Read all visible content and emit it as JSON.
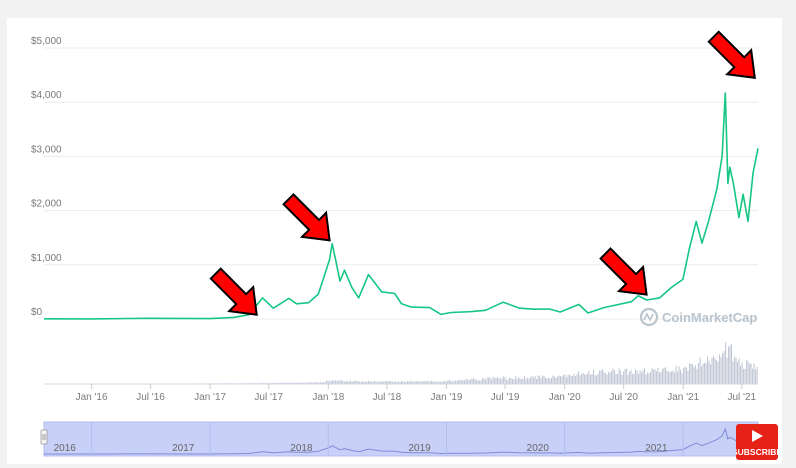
{
  "chart_data": {
    "type": "line",
    "title": "",
    "xlabel": "",
    "ylabel": "",
    "ylim": [
      0,
      5000
    ],
    "grid": true,
    "y_ticks": [
      "$5,000",
      "$4,000",
      "$3,000",
      "$2,000",
      "$1,000",
      "$0"
    ],
    "y_tick_values": [
      5000,
      4000,
      3000,
      2000,
      1000,
      0
    ],
    "x_ticks": [
      "Jan '16",
      "Jul '16",
      "Jan '17",
      "Jul '17",
      "Jan '18",
      "Jul '18",
      "Jan '19",
      "Jul '19",
      "Jan '20",
      "Jul '20",
      "Jan '21",
      "Jul '21"
    ],
    "x_range": [
      "2015-08-07",
      "2021-08-20"
    ],
    "series": [
      {
        "color": "#16c784",
        "points": [
          [
            "2015-08-07",
            3
          ],
          [
            "2016-01-01",
            1
          ],
          [
            "2016-06-15",
            13
          ],
          [
            "2016-12-31",
            8
          ],
          [
            "2017-03-15",
            30
          ],
          [
            "2017-05-01",
            80
          ],
          [
            "2017-06-12",
            390
          ],
          [
            "2017-07-15",
            200
          ],
          [
            "2017-09-01",
            380
          ],
          [
            "2017-09-25",
            280
          ],
          [
            "2017-11-01",
            300
          ],
          [
            "2017-12-01",
            460
          ],
          [
            "2017-12-20",
            800
          ],
          [
            "2018-01-05",
            1100
          ],
          [
            "2018-01-13",
            1390
          ],
          [
            "2018-01-25",
            1050
          ],
          [
            "2018-02-06",
            700
          ],
          [
            "2018-02-20",
            900
          ],
          [
            "2018-03-15",
            580
          ],
          [
            "2018-04-05",
            390
          ],
          [
            "2018-05-05",
            820
          ],
          [
            "2018-06-15",
            500
          ],
          [
            "2018-07-25",
            470
          ],
          [
            "2018-08-15",
            280
          ],
          [
            "2018-09-15",
            220
          ],
          [
            "2018-11-10",
            210
          ],
          [
            "2018-12-15",
            85
          ],
          [
            "2019-01-15",
            120
          ],
          [
            "2019-03-15",
            135
          ],
          [
            "2019-05-01",
            160
          ],
          [
            "2019-06-25",
            310
          ],
          [
            "2019-08-15",
            200
          ],
          [
            "2019-10-01",
            180
          ],
          [
            "2019-11-15",
            185
          ],
          [
            "2019-12-18",
            130
          ],
          [
            "2020-02-14",
            270
          ],
          [
            "2020-03-13",
            110
          ],
          [
            "2020-05-01",
            210
          ],
          [
            "2020-07-25",
            320
          ],
          [
            "2020-08-15",
            430
          ],
          [
            "2020-09-10",
            350
          ],
          [
            "2020-10-20",
            390
          ],
          [
            "2020-11-25",
            580
          ],
          [
            "2020-12-31",
            730
          ],
          [
            "2021-01-20",
            1300
          ],
          [
            "2021-02-10",
            1800
          ],
          [
            "2021-02-28",
            1400
          ],
          [
            "2021-03-20",
            1800
          ],
          [
            "2021-04-15",
            2400
          ],
          [
            "2021-05-01",
            3000
          ],
          [
            "2021-05-11",
            4170
          ],
          [
            "2021-05-19",
            2500
          ],
          [
            "2021-05-25",
            2800
          ],
          [
            "2021-06-05",
            2500
          ],
          [
            "2021-06-22",
            1870
          ],
          [
            "2021-07-05",
            2300
          ],
          [
            "2021-07-20",
            1800
          ],
          [
            "2021-08-05",
            2700
          ],
          [
            "2021-08-20",
            3150
          ]
        ]
      }
    ],
    "volume": {
      "color": "#c3c9d6",
      "note_scale_max": 1,
      "points": [
        [
          "2015-08-07",
          0.002
        ],
        [
          "2016-06-15",
          0.005
        ],
        [
          "2017-05-01",
          0.02
        ],
        [
          "2017-12-01",
          0.04
        ],
        [
          "2018-01-10",
          0.09
        ],
        [
          "2018-06-01",
          0.06
        ],
        [
          "2018-12-15",
          0.07
        ],
        [
          "2019-06-01",
          0.15
        ],
        [
          "2019-12-01",
          0.18
        ],
        [
          "2020-03-13",
          0.3
        ],
        [
          "2020-08-15",
          0.32
        ],
        [
          "2020-12-31",
          0.38
        ],
        [
          "2021-02-10",
          0.55
        ],
        [
          "2021-04-15",
          0.6
        ],
        [
          "2021-05-19",
          1.0
        ],
        [
          "2021-06-22",
          0.55
        ],
        [
          "2021-08-20",
          0.4
        ]
      ]
    },
    "navigator_years": [
      "2016",
      "2017",
      "2018",
      "2019",
      "2020",
      "2021"
    ],
    "watermark": "CoinMarketCap",
    "annotations": [
      {
        "type": "arrow",
        "color": "#ff0000",
        "points_to": [
          "2017-05-25",
          80
        ]
      },
      {
        "type": "arrow",
        "color": "#ff0000",
        "points_to": [
          "2018-01-05",
          1450
        ]
      },
      {
        "type": "arrow",
        "color": "#ff0000",
        "points_to": [
          "2020-09-10",
          450
        ]
      },
      {
        "type": "arrow",
        "color": "#ff0000",
        "points_to": [
          "2021-08-10",
          4450
        ]
      }
    ]
  },
  "badge": {
    "label": "SUBSCRIBE",
    "color": "#e62117"
  }
}
